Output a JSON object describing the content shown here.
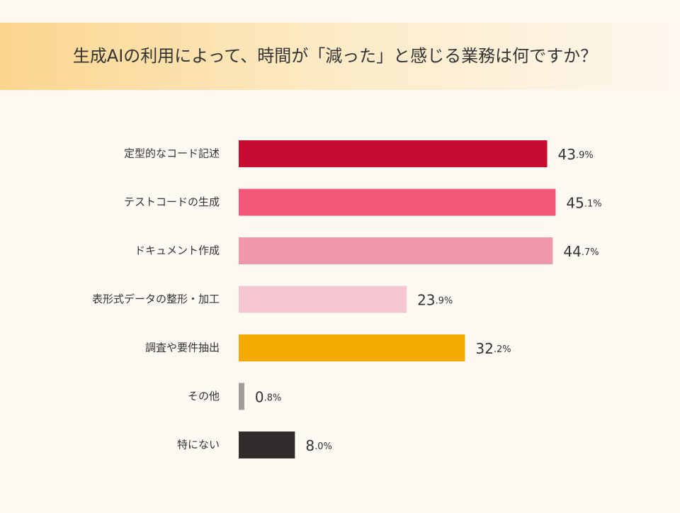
{
  "chart_data": {
    "type": "bar",
    "orientation": "horizontal",
    "title": "生成AIの利用によって、時間が「減った」と感じる業務は何ですか？",
    "categories": [
      "定型的なコード記述",
      "テストコードの生成",
      "ドキュメント作成",
      "表形式データの整形・加工",
      "調査や要件抽出",
      "その他",
      "特にない"
    ],
    "values": [
      43.9,
      45.1,
      44.7,
      23.9,
      32.2,
      0.8,
      8.0
    ],
    "value_labels": [
      "43.9%",
      "45.1%",
      "44.7%",
      "23.9%",
      "32.2%",
      "0.8%",
      "8.0%"
    ],
    "colors": [
      "#c60c30",
      "#f4567a",
      "#ee98a9",
      "#f5c8d1",
      "#f4a900",
      "#a09b97",
      "#322c2c"
    ],
    "xlim": [
      0,
      50
    ]
  }
}
